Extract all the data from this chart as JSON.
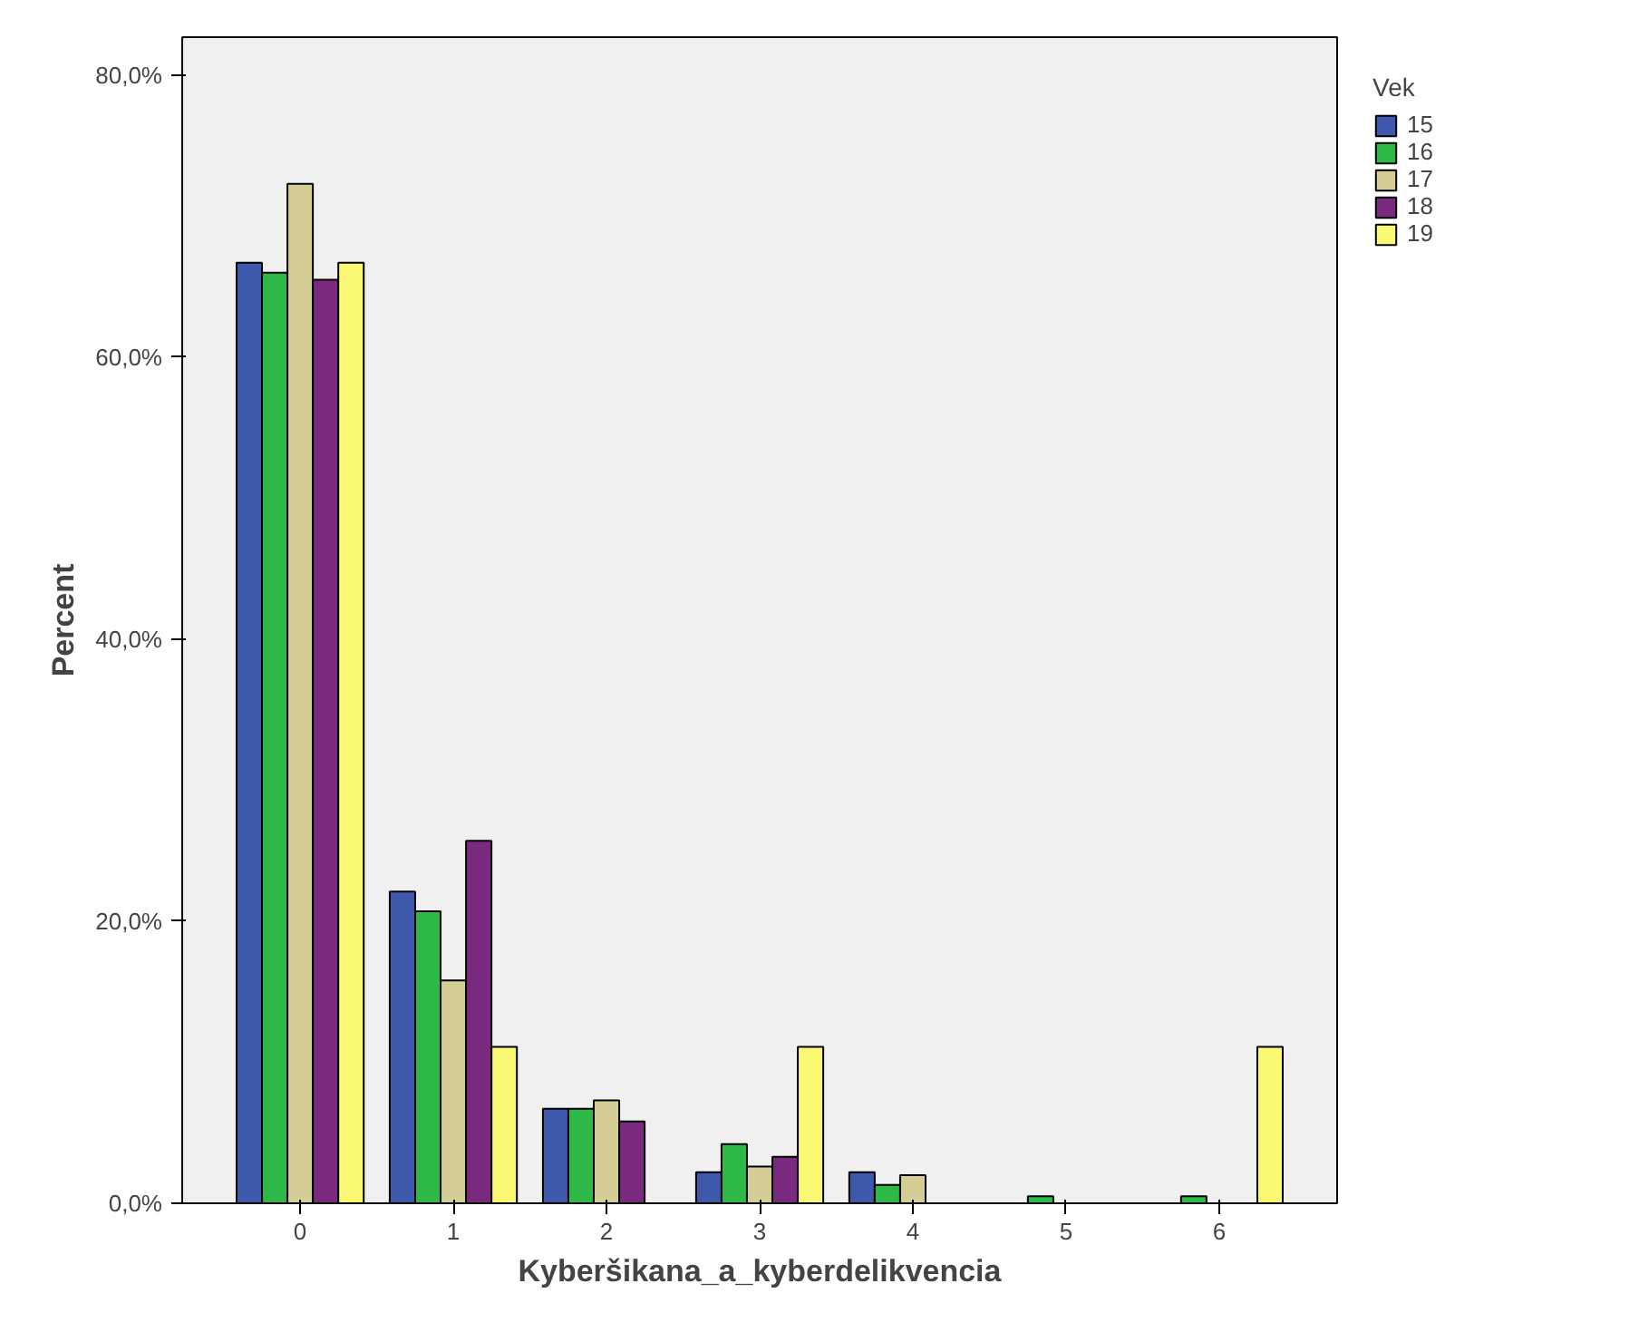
{
  "chart_data": {
    "type": "bar",
    "xlabel": "Kyberšikana_a_kyberdelikvencia",
    "ylabel": "Percent",
    "legend_title": "Vek",
    "categories": [
      "0",
      "1",
      "2",
      "3",
      "4",
      "5",
      "6"
    ],
    "series": [
      {
        "name": "15",
        "color": "#3e58ac",
        "values": [
          66.7,
          22.1,
          6.7,
          2.2,
          2.2,
          0,
          0
        ]
      },
      {
        "name": "16",
        "color": "#2eb848",
        "values": [
          66.0,
          20.7,
          6.7,
          4.2,
          1.3,
          0.5,
          0.5
        ]
      },
      {
        "name": "17",
        "color": "#d4ce96",
        "values": [
          72.3,
          15.8,
          7.3,
          2.6,
          2.0,
          0,
          0
        ]
      },
      {
        "name": "18",
        "color": "#7a2a7e",
        "values": [
          65.5,
          25.7,
          5.8,
          3.3,
          0,
          0,
          0
        ]
      },
      {
        "name": "19",
        "color": "#fbf873",
        "values": [
          66.7,
          11.1,
          0,
          11.1,
          0,
          0,
          11.1
        ]
      }
    ],
    "ylim": [
      0,
      82.7
    ],
    "yticks": [
      {
        "value": 0,
        "label": "0,0%"
      },
      {
        "value": 20,
        "label": "20,0%"
      },
      {
        "value": 40,
        "label": "40,0%"
      },
      {
        "value": 60,
        "label": "60,0%"
      },
      {
        "value": 80,
        "label": "80,0%"
      }
    ],
    "grid": false,
    "legend": "top right"
  }
}
